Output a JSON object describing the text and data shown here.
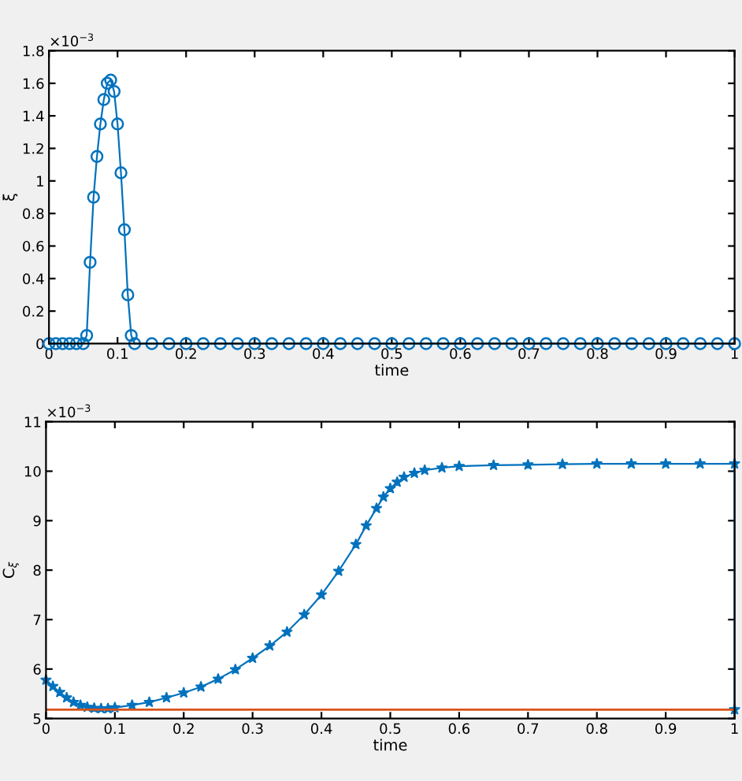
{
  "chart_data": [
    {
      "type": "line",
      "xlabel": "time",
      "ylabel": "ξ",
      "annotations": [
        "×10$^{−3}$"
      ],
      "marker": "circle",
      "line_style": "solid",
      "grid": false,
      "legend": false,
      "xlim": [
        0,
        1
      ],
      "xticks": [
        0,
        0.1,
        0.2,
        0.3,
        0.4,
        0.5,
        0.6,
        0.7,
        0.8,
        0.9,
        1
      ],
      "ylim": [
        0,
        1.8
      ],
      "yticks": [
        0,
        0.2,
        0.4,
        0.6,
        0.8,
        1,
        1.2,
        1.4,
        1.6,
        1.8
      ],
      "series": [
        {
          "color": "#0072bd",
          "x": [
            0,
            0.01,
            0.02,
            0.03,
            0.04,
            0.05,
            0.055,
            0.06,
            0.065,
            0.07,
            0.075,
            0.08,
            0.085,
            0.09,
            0.095,
            0.1,
            0.105,
            0.11,
            0.115,
            0.12,
            0.125,
            0.15,
            0.175,
            0.2,
            0.225,
            0.25,
            0.275,
            0.3,
            0.325,
            0.35,
            0.375,
            0.4,
            0.425,
            0.45,
            0.475,
            0.5,
            0.525,
            0.55,
            0.575,
            0.6,
            0.625,
            0.65,
            0.675,
            0.7,
            0.725,
            0.75,
            0.775,
            0.8,
            0.825,
            0.85,
            0.875,
            0.9,
            0.925,
            0.95,
            0.975,
            1
          ],
          "values": [
            0,
            0,
            0,
            0,
            0,
            0,
            0.05,
            0.5,
            0.9,
            1.15,
            1.35,
            1.5,
            1.6,
            1.62,
            1.55,
            1.35,
            1.05,
            0.7,
            0.3,
            0.05,
            0,
            0,
            0,
            0,
            0,
            0,
            0,
            0,
            0,
            0,
            0,
            0,
            0,
            0,
            0,
            0,
            0,
            0,
            0,
            0,
            0,
            0,
            0,
            0,
            0,
            0,
            0,
            0,
            0,
            0,
            0,
            0,
            0,
            0,
            0,
            0
          ]
        }
      ]
    },
    {
      "type": "line",
      "xlabel": "time",
      "ylabel": "C$_{ξ}$",
      "annotations": [
        "×10$^{−3}$"
      ],
      "marker": "star",
      "line_style": "solid",
      "grid": false,
      "legend": false,
      "xlim": [
        0,
        1
      ],
      "xticks": [
        0,
        0.1,
        0.2,
        0.3,
        0.4,
        0.5,
        0.6,
        0.7,
        0.8,
        0.9,
        1
      ],
      "ylim": [
        5,
        11
      ],
      "yticks": [
        5,
        6,
        7,
        8,
        9,
        10,
        11
      ],
      "ref_lines": [
        {
          "axis": "y",
          "value": 5.18,
          "label": null,
          "color": "#d95319"
        }
      ],
      "series": [
        {
          "color": "#0072bd",
          "x": [
            0,
            0.01,
            0.02,
            0.03,
            0.04,
            0.05,
            0.06,
            0.07,
            0.08,
            0.09,
            0.1,
            0.125,
            0.15,
            0.175,
            0.2,
            0.225,
            0.25,
            0.275,
            0.3,
            0.325,
            0.35,
            0.375,
            0.4,
            0.425,
            0.45,
            0.465,
            0.48,
            0.49,
            0.5,
            0.51,
            0.52,
            0.535,
            0.55,
            0.575,
            0.6,
            0.65,
            0.7,
            0.75,
            0.8,
            0.85,
            0.9,
            0.95,
            1,
            1
          ],
          "values": [
            5.78,
            5.65,
            5.53,
            5.42,
            5.33,
            5.27,
            5.23,
            5.21,
            5.2,
            5.2,
            5.22,
            5.27,
            5.33,
            5.42,
            5.52,
            5.64,
            5.8,
            5.99,
            6.22,
            6.47,
            6.75,
            7.1,
            7.5,
            7.98,
            8.52,
            8.9,
            9.25,
            9.48,
            9.65,
            9.78,
            9.88,
            9.96,
            10.02,
            10.07,
            10.1,
            10.12,
            10.13,
            10.14,
            10.15,
            10.15,
            10.15,
            10.15,
            10.15,
            5.18
          ]
        }
      ]
    }
  ]
}
